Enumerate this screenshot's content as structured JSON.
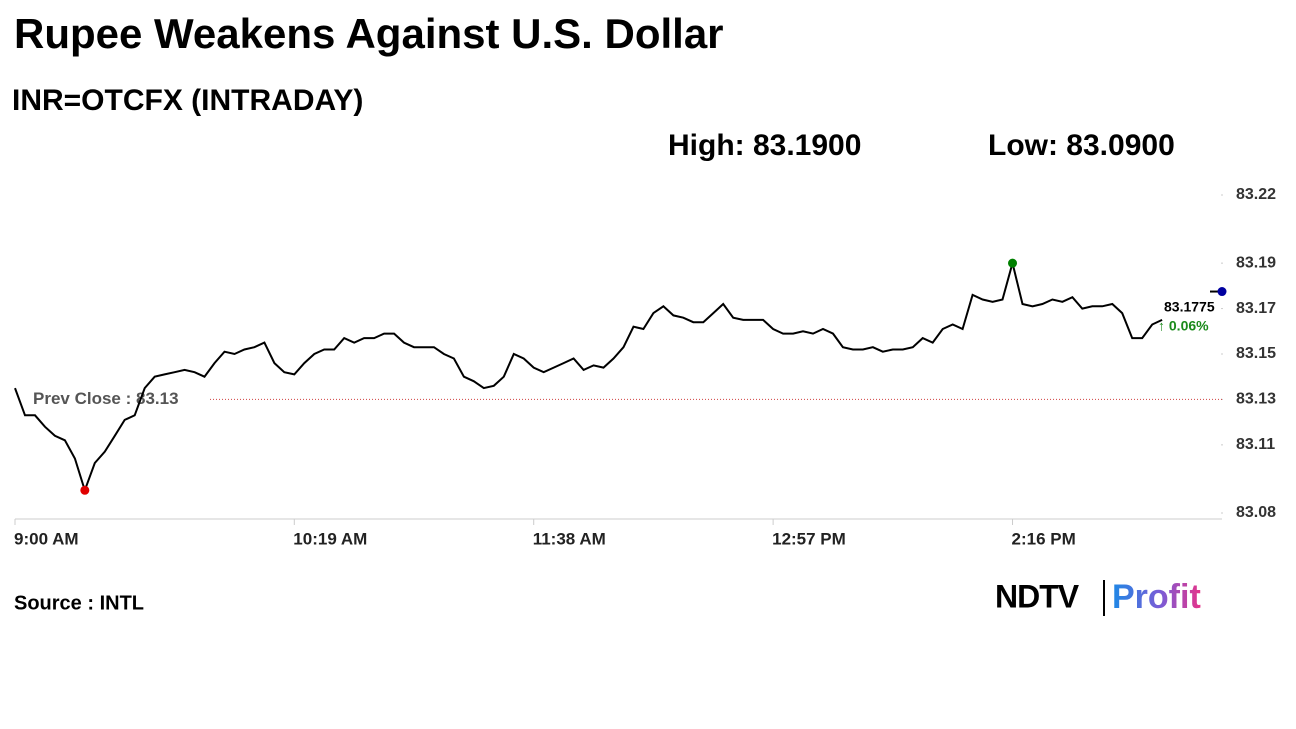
{
  "chart_data": {
    "type": "line",
    "title": "Rupee Weakens Against U.S. Dollar",
    "subtitle": "INR=OTCFX (INTRADAY)",
    "annotations": [
      "High: 83.1900",
      "Low: 83.0900",
      "↑ 0.06%"
    ],
    "prev_close": {
      "value": 83.13,
      "label": "Prev Close : 83.13"
    },
    "source": "Source : INTL",
    "logo": [
      "NDTV",
      "Profit"
    ],
    "categories": [
      "9:00 AM",
      null,
      null,
      null,
      null,
      null,
      null,
      null,
      null,
      null,
      null,
      null,
      null,
      null,
      null,
      null,
      null,
      null,
      null,
      null,
      null,
      null,
      null,
      null,
      null,
      null,
      null,
      null,
      "10:19 AM",
      null,
      null,
      null,
      null,
      null,
      null,
      null,
      null,
      null,
      null,
      null,
      null,
      null,
      null,
      null,
      null,
      null,
      null,
      null,
      null,
      null,
      null,
      null,
      "11:38 AM",
      null,
      null,
      null,
      null,
      null,
      null,
      null,
      null,
      null,
      null,
      null,
      null,
      null,
      null,
      null,
      null,
      null,
      null,
      null,
      null,
      null,
      null,
      null,
      "12:57 PM",
      null,
      null,
      null,
      null,
      null,
      null,
      null,
      null,
      null,
      null,
      null,
      null,
      null,
      null,
      null,
      null,
      null,
      null,
      null,
      null,
      null,
      null,
      null,
      "2:16 PM",
      null,
      null,
      null,
      null,
      null,
      null,
      null,
      null,
      null,
      null,
      null,
      null,
      null,
      null,
      null,
      null,
      null,
      null,
      null,
      null,
      null
    ],
    "series": [
      {
        "name": "INR=OTCFX",
        "color": "#000000",
        "values": [
          83.135,
          83.123,
          83.123,
          83.118,
          83.114,
          83.112,
          83.104,
          83.09,
          83.102,
          83.107,
          83.114,
          83.121,
          83.123,
          83.135,
          83.14,
          83.141,
          83.142,
          83.143,
          83.142,
          83.14,
          83.146,
          83.151,
          83.15,
          83.152,
          83.153,
          83.155,
          83.146,
          83.142,
          83.141,
          83.146,
          83.15,
          83.152,
          83.152,
          83.157,
          83.155,
          83.157,
          83.157,
          83.159,
          83.159,
          83.155,
          83.153,
          83.153,
          83.153,
          83.15,
          83.148,
          83.14,
          83.138,
          83.135,
          83.136,
          83.14,
          83.15,
          83.148,
          83.144,
          83.142,
          83.144,
          83.146,
          83.148,
          83.143,
          83.145,
          83.144,
          83.148,
          83.153,
          83.162,
          83.161,
          83.168,
          83.171,
          83.167,
          83.166,
          83.164,
          83.164,
          83.168,
          83.172,
          83.166,
          83.165,
          83.165,
          83.165,
          83.161,
          83.159,
          83.159,
          83.16,
          83.159,
          83.161,
          83.159,
          83.153,
          83.152,
          83.152,
          83.153,
          83.151,
          83.152,
          83.152,
          83.153,
          83.157,
          83.155,
          83.161,
          83.163,
          83.161,
          83.176,
          83.174,
          83.173,
          83.174,
          83.19,
          83.172,
          83.171,
          83.172,
          83.174,
          83.173,
          83.175,
          83.17,
          83.171,
          83.171,
          83.172,
          83.168,
          83.157,
          83.157,
          83.163,
          83.165,
          null,
          null,
          null,
          null,
          null,
          83.1775
        ]
      }
    ],
    "low_index": 7,
    "high_index": 100,
    "marker_colors": {
      "low": "#e00000",
      "high": "#008000",
      "last": "#0000a0"
    },
    "ylim": [
      83.08,
      83.22
    ],
    "yticks": [
      83.08,
      83.11,
      83.13,
      83.15,
      83.17,
      83.19,
      83.22
    ],
    "grid": false
  }
}
